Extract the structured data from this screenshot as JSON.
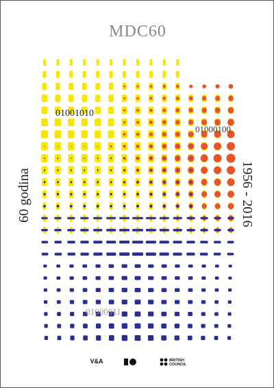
{
  "logo": "MDC60",
  "binary": [
    "01001010",
    "01000100",
    "01000011"
  ],
  "side_left": "60 godina",
  "side_right": "1956 - 2016",
  "partners": {
    "va": "V&A",
    "british_council": [
      "BRITISH",
      "COUNCIL"
    ]
  }
}
